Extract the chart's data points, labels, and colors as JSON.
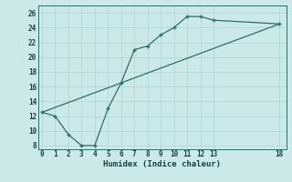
{
  "xlabel": "Humidex (Indice chaleur)",
  "ylabel": "",
  "bg_color": "#cce9ea",
  "grid_color": "#aed4d6",
  "line_color": "#2e6e65",
  "line1_x": [
    0,
    1,
    2,
    3,
    4,
    5,
    6,
    7,
    8,
    9,
    10,
    11,
    12,
    13,
    18
  ],
  "line1_y": [
    12.5,
    12.0,
    9.5,
    8.0,
    8.0,
    13.0,
    16.5,
    21.0,
    21.5,
    23.0,
    24.0,
    25.5,
    25.5,
    25.0,
    24.5
  ],
  "line2_x": [
    0,
    18
  ],
  "line2_y": [
    12.5,
    24.5
  ],
  "xlim": [
    -0.3,
    18.5
  ],
  "ylim": [
    7.5,
    27
  ],
  "xticks": [
    0,
    1,
    2,
    3,
    4,
    5,
    6,
    7,
    8,
    9,
    10,
    11,
    12,
    13,
    18
  ],
  "yticks": [
    8,
    10,
    12,
    14,
    16,
    18,
    20,
    22,
    24,
    26
  ]
}
